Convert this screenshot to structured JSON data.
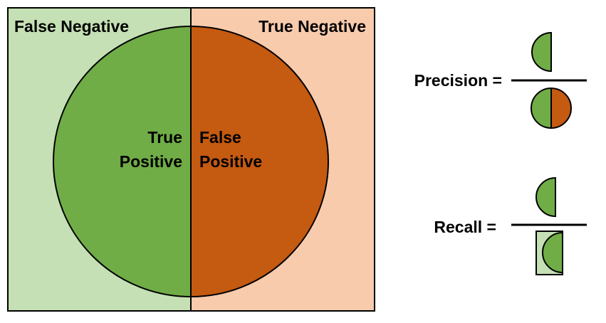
{
  "diagram": {
    "quadrants": {
      "false_negative": "False Negative",
      "true_negative": "True Negative",
      "true_positive_line1": "True",
      "true_positive_line2": "Positive",
      "false_positive_line1": "False",
      "false_positive_line2": "Positive"
    },
    "formulas": {
      "precision_label": "Precision =",
      "recall_label": "Recall ="
    },
    "colors": {
      "positive_green": "#70AD47",
      "positive_orange": "#C55A11",
      "negative_green_bg": "#C5E0B4",
      "negative_orange_bg": "#F8CBAD",
      "stroke": "#000000"
    }
  }
}
